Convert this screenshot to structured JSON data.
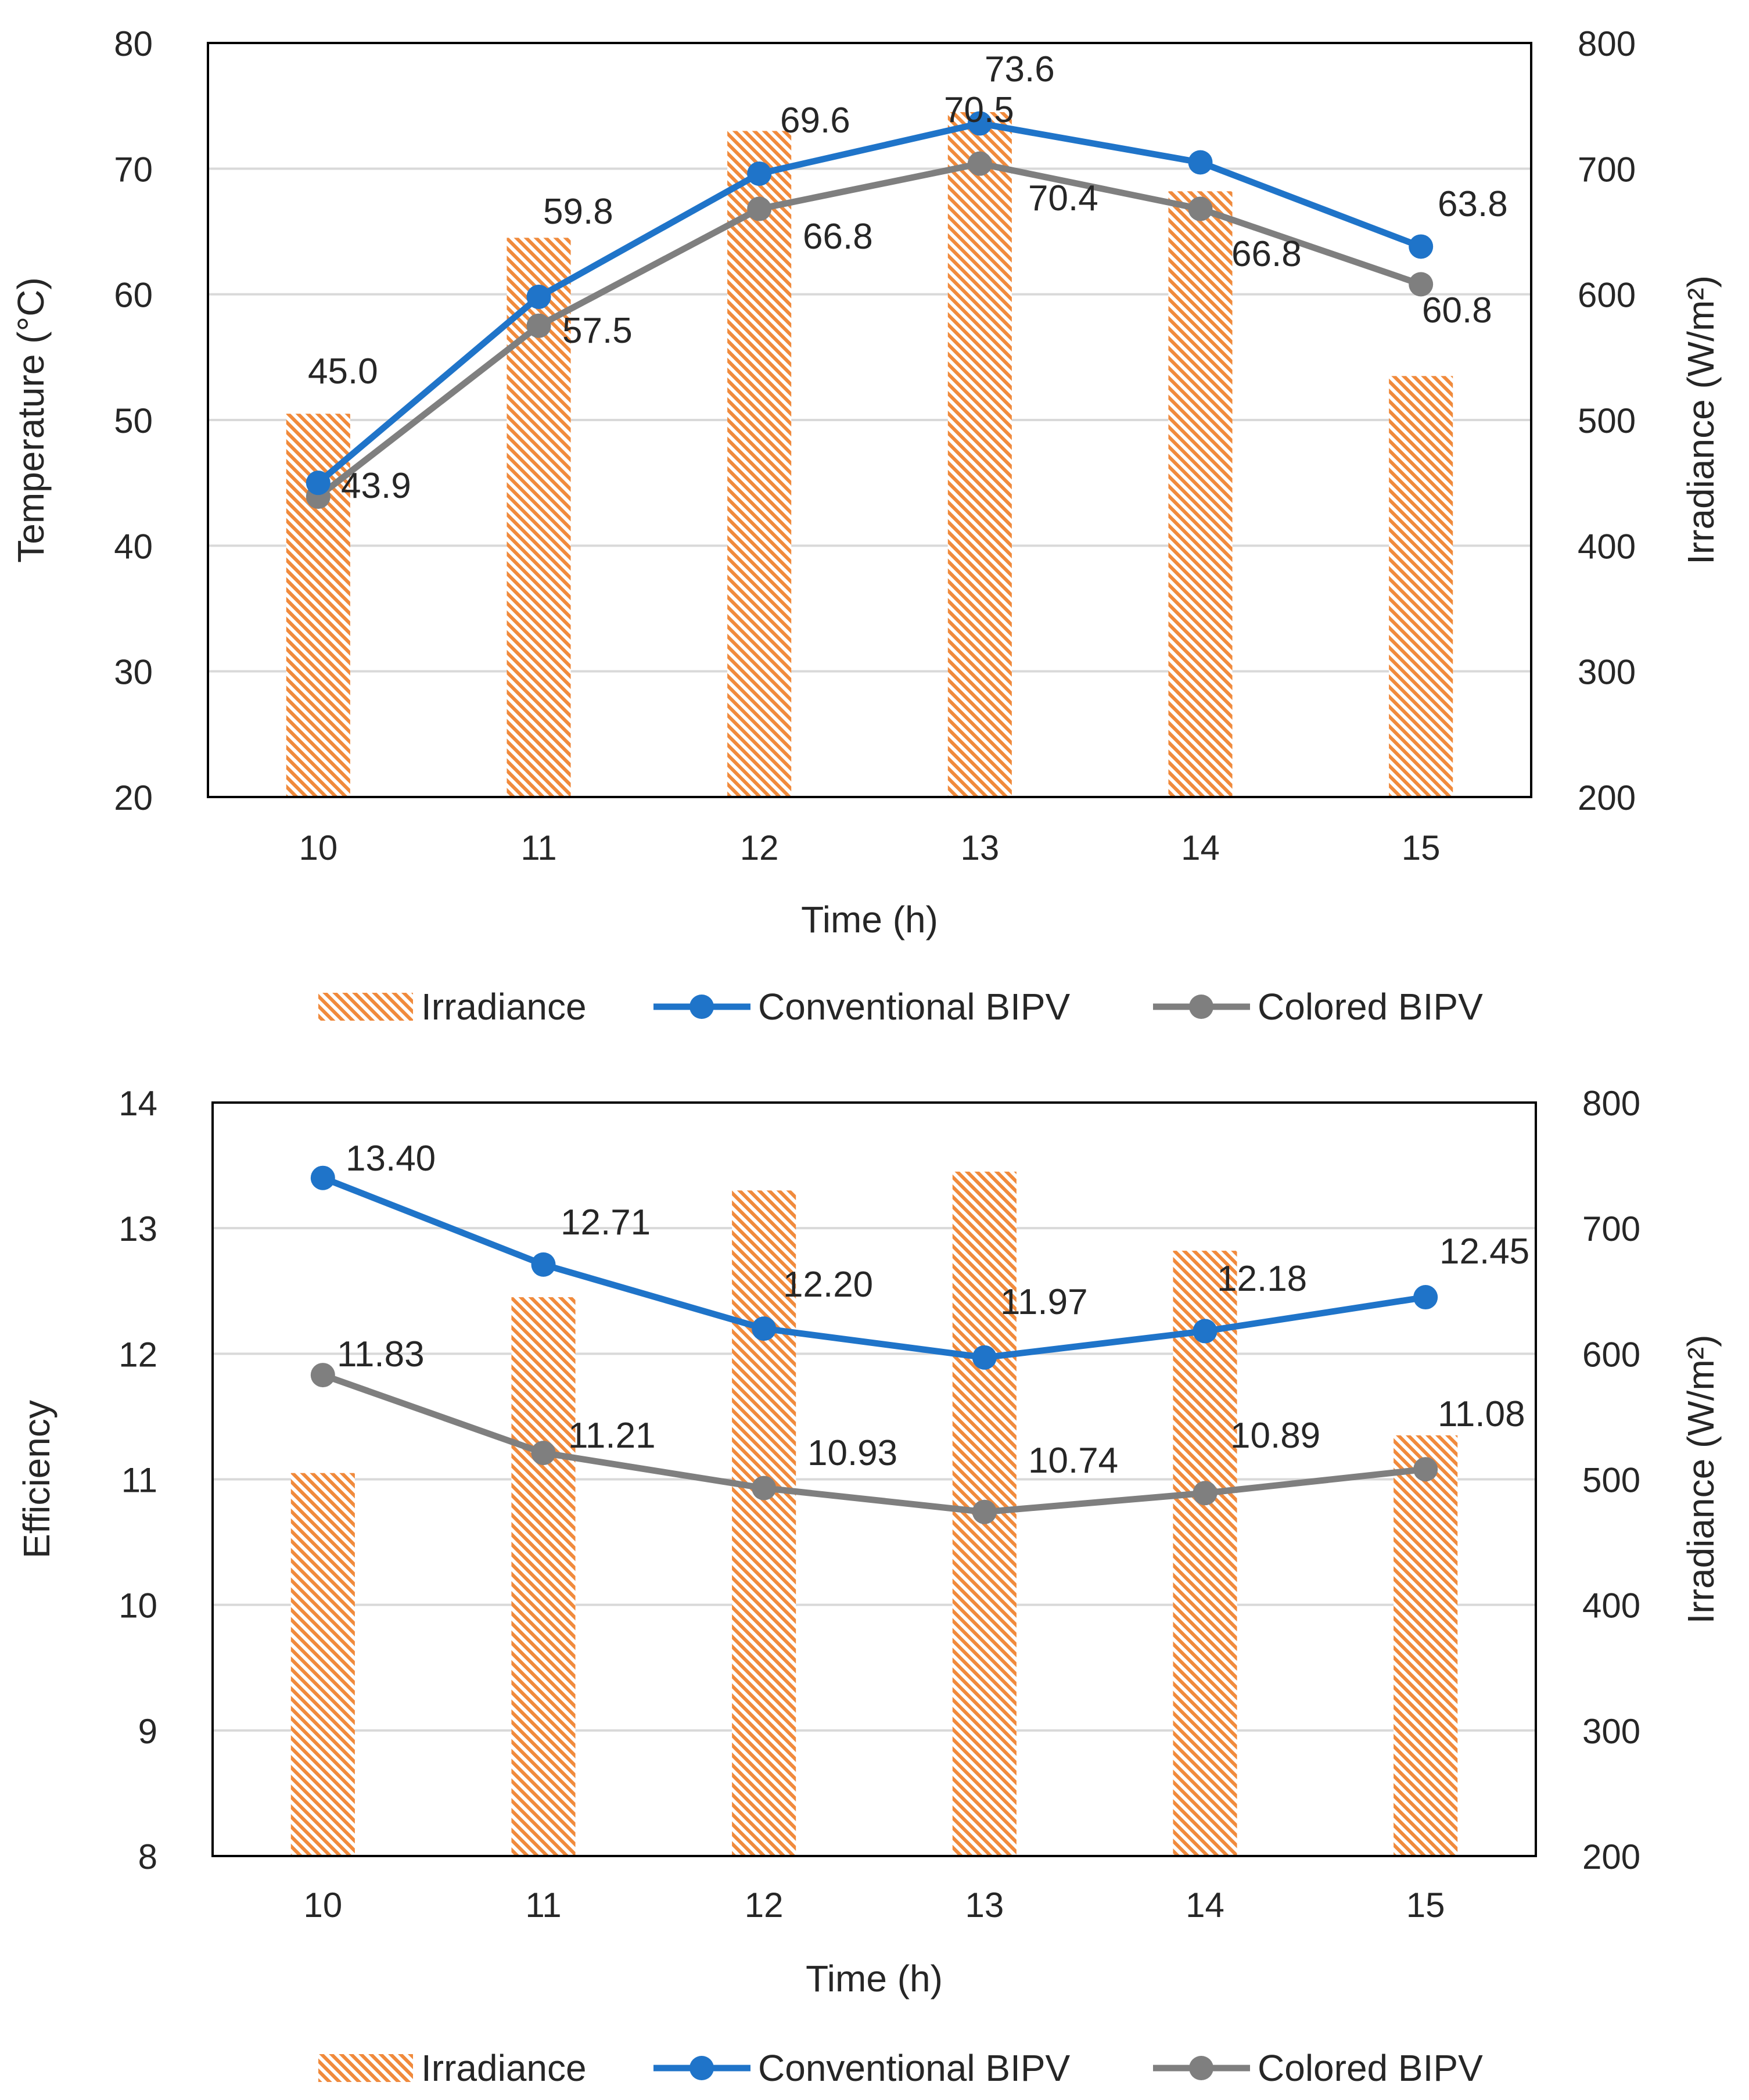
{
  "chart_data": [
    {
      "type": "bar+line",
      "categories": [
        "10",
        "11",
        "12",
        "13",
        "14",
        "15"
      ],
      "xlabel": "Time (h)",
      "ylabel": "Temperature (°C)",
      "y2label": "Irradiance (W/m²)",
      "ylim": [
        20,
        80
      ],
      "yticks": [
        20,
        30,
        40,
        50,
        60,
        70,
        80
      ],
      "y2lim": [
        200,
        800
      ],
      "y2ticks": [
        200,
        300,
        400,
        500,
        600,
        700,
        800
      ],
      "grid": "horizontal",
      "legend_position": "bottom",
      "bars": {
        "name": "Irradiance",
        "axis": "right",
        "values": [
          505,
          645,
          730,
          745,
          682,
          535
        ]
      },
      "series": [
        {
          "name": "Conventional BIPV",
          "axis": "left",
          "values": [
            45.0,
            59.8,
            69.6,
            73.6,
            70.5,
            63.8
          ],
          "labels": [
            "45.0",
            "59.8",
            "69.6",
            "73.6",
            "70.5",
            "63.8"
          ]
        },
        {
          "name": "Colored BIPV",
          "axis": "left",
          "values": [
            43.9,
            57.5,
            66.8,
            70.4,
            66.8,
            60.8
          ],
          "labels": [
            "43.9",
            "57.5",
            "66.8",
            "70.4",
            "66.8",
            "60.8"
          ]
        }
      ]
    },
    {
      "type": "bar+line",
      "categories": [
        "10",
        "11",
        "12",
        "13",
        "14",
        "15"
      ],
      "xlabel": "Time (h)",
      "ylabel": "Efficiency",
      "y2label": "Irradiance (W/m²)",
      "ylim": [
        8,
        14
      ],
      "yticks": [
        8,
        9,
        10,
        11,
        12,
        13,
        14
      ],
      "y2lim": [
        200,
        800
      ],
      "y2ticks": [
        200,
        300,
        400,
        500,
        600,
        700,
        800
      ],
      "grid": "horizontal",
      "legend_position": "bottom",
      "bars": {
        "name": "Irradiance",
        "axis": "right",
        "values": [
          505,
          645,
          730,
          745,
          682,
          535
        ]
      },
      "series": [
        {
          "name": "Conventional BIPV",
          "axis": "left",
          "values": [
            13.4,
            12.71,
            12.2,
            11.97,
            12.18,
            12.45
          ],
          "labels": [
            "13.40",
            "12.71",
            "12.20",
            "11.97",
            "12.18",
            "12.45"
          ]
        },
        {
          "name": "Colored BIPV",
          "axis": "left",
          "values": [
            11.83,
            11.21,
            10.93,
            10.74,
            10.89,
            11.08
          ],
          "labels": [
            "11.83",
            "11.21",
            "10.93",
            "10.74",
            "10.89",
            "11.08"
          ]
        }
      ]
    }
  ],
  "colors": {
    "bar": "#f08a3c",
    "conventional": "#1f74c9",
    "colored": "#7f7f7f",
    "grid": "#d9d9d9",
    "axis": "#000000"
  }
}
